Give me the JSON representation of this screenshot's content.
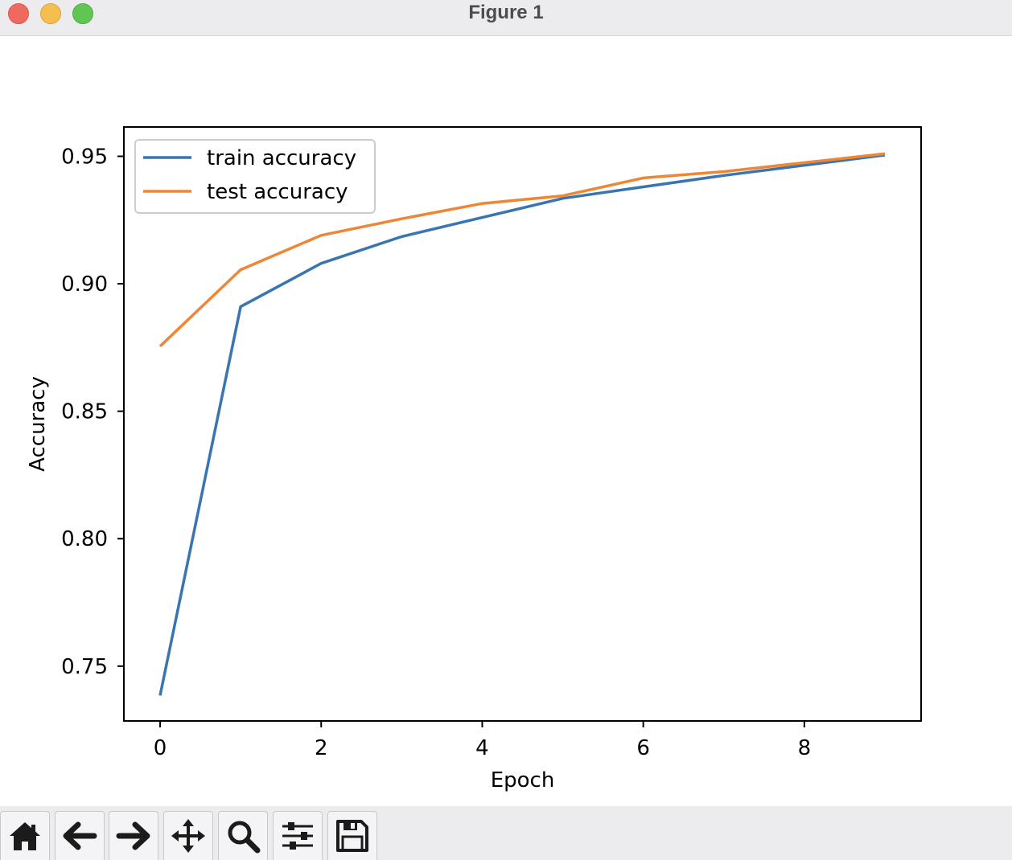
{
  "window": {
    "title": "Figure 1"
  },
  "toolbar": {
    "tools": [
      {
        "name": "home",
        "icon": "home-icon"
      },
      {
        "name": "back",
        "icon": "arrow-left-icon"
      },
      {
        "name": "forward",
        "icon": "arrow-right-icon"
      },
      {
        "name": "pan",
        "icon": "move-icon"
      },
      {
        "name": "zoom",
        "icon": "magnifier-icon"
      },
      {
        "name": "configure-subplots",
        "icon": "sliders-icon"
      },
      {
        "name": "save",
        "icon": "floppy-disk-icon"
      }
    ]
  },
  "colors": {
    "train": "#3a75b0",
    "test": "#ef8636"
  },
  "chart_data": {
    "type": "line",
    "title": "",
    "xlabel": "Epoch",
    "ylabel": "Accuracy",
    "x": [
      0,
      1,
      2,
      3,
      4,
      5,
      6,
      7,
      8,
      9
    ],
    "xlim": [
      -0.45,
      9.45
    ],
    "ylim": [
      0.7285,
      0.9615
    ],
    "xticks": [
      0,
      2,
      4,
      6,
      8
    ],
    "xtick_labels": [
      "0",
      "2",
      "4",
      "6",
      "8"
    ],
    "yticks": [
      0.75,
      0.8,
      0.85,
      0.9,
      0.95
    ],
    "ytick_labels": [
      "0.75",
      "0.80",
      "0.85",
      "0.90",
      "0.95"
    ],
    "grid": false,
    "legend_position": "upper left",
    "series": [
      {
        "name": "train accuracy",
        "color": "#3a75b0",
        "values": [
          0.7385,
          0.891,
          0.908,
          0.9185,
          0.926,
          0.9335,
          0.938,
          0.9425,
          0.9465,
          0.9505
        ]
      },
      {
        "name": "test accuracy",
        "color": "#ef8636",
        "values": [
          0.8755,
          0.9055,
          0.919,
          0.9255,
          0.9315,
          0.9345,
          0.9415,
          0.944,
          0.9475,
          0.951
        ]
      }
    ]
  }
}
